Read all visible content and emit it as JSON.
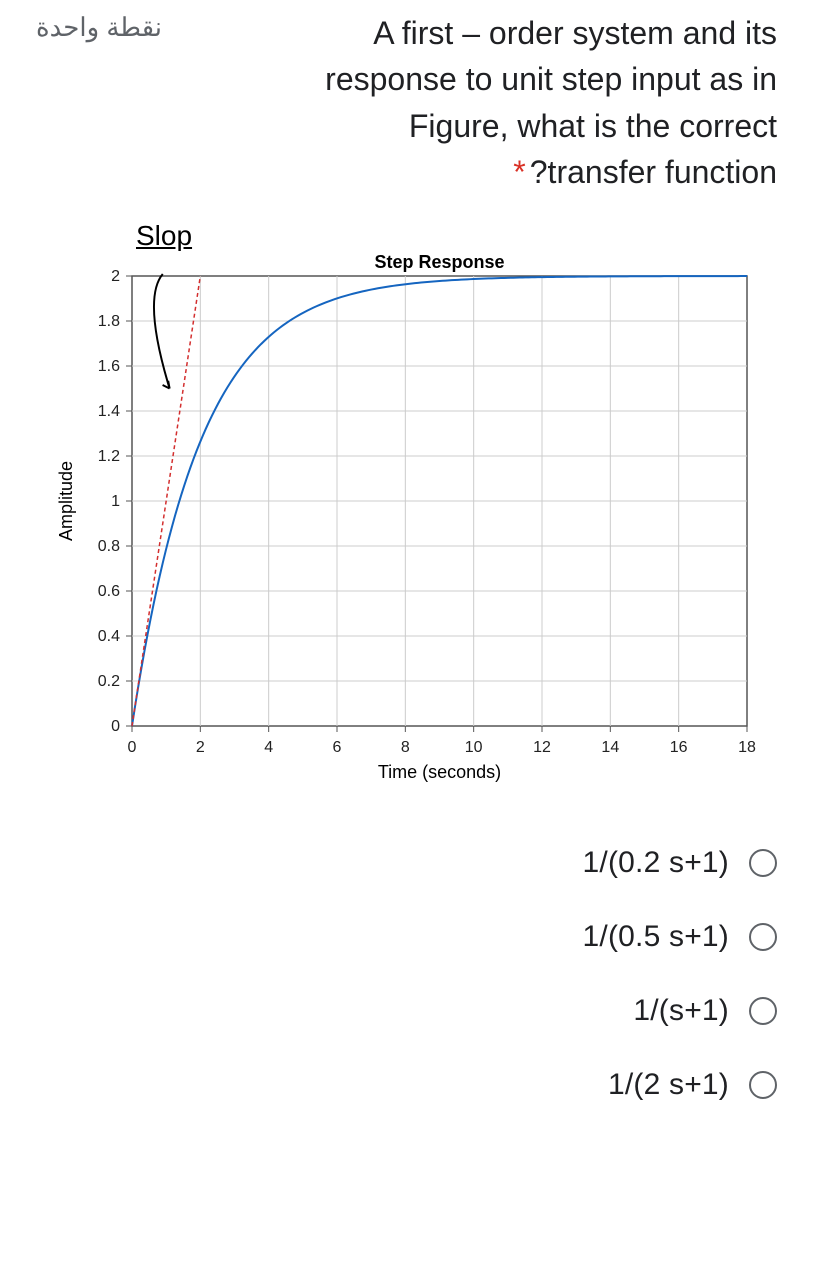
{
  "points_badge": "نقطة واحدة",
  "question": {
    "line1": "A first – order system and its",
    "line2": "response to unit step input as in",
    "line3": "Figure, what is the correct",
    "line4": "?transfer function"
  },
  "required_marker": "*",
  "chart": {
    "type": "line",
    "title": "Step Response",
    "xlabel": "Time (seconds)",
    "ylabel": "Amplitude",
    "xlim": [
      0,
      18
    ],
    "ylim": [
      0,
      2
    ],
    "xticks": [
      0,
      2,
      4,
      6,
      8,
      10,
      12,
      14,
      16,
      18
    ],
    "yticks": [
      0,
      0.2,
      0.4,
      0.6,
      0.8,
      1,
      1.2,
      1.4,
      1.6,
      1.8,
      2
    ],
    "background_color": "#ffffff",
    "grid_color": "#cccccc",
    "axis_color": "#555555",
    "curve_color": "#1565c0",
    "slope_line_color": "#d32f2f",
    "slope_label": "Slop",
    "curve_steady_state": 2.0,
    "curve_time_constant": 2.0,
    "slope_line_end_x": 2.0,
    "slope_line_end_y": 2.0,
    "label_fontsize": 18,
    "title_fontsize": 18,
    "tick_fontsize": 16
  },
  "options": [
    {
      "label": "1/(0.2 s+1)"
    },
    {
      "label": "1/(0.5 s+1)"
    },
    {
      "label": "1/(s+1)"
    },
    {
      "label": "1/(2 s+1)"
    }
  ]
}
